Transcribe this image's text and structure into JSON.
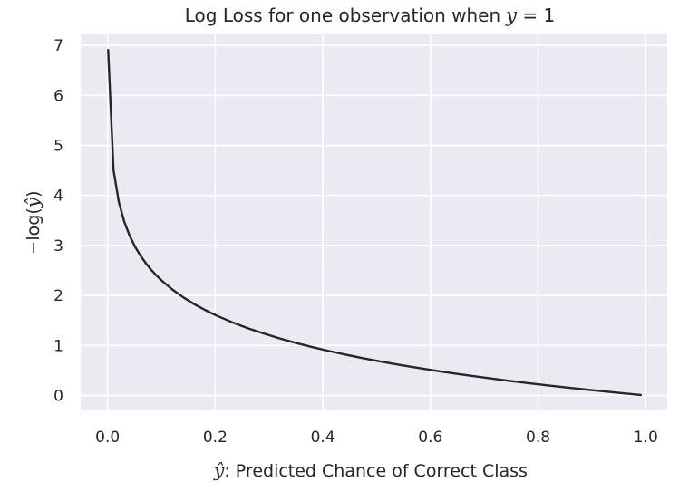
{
  "chart_data": {
    "type": "line",
    "title": {
      "text": "Log Loss for one observation when",
      "math_var": "y",
      "math_eq": " = 1"
    },
    "xlabel": {
      "math_var": "ŷ",
      "text": ": Predicted Chance of Correct Class"
    },
    "ylabel": {
      "text": "−log(",
      "math_var": "ŷ",
      "close": ")"
    },
    "xlim": [
      -0.05,
      1.04
    ],
    "ylim": [
      -0.3,
      7.22
    ],
    "grid": true,
    "xticks": [
      {
        "value": 0.0,
        "label": "0.0"
      },
      {
        "value": 0.2,
        "label": "0.2"
      },
      {
        "value": 0.4,
        "label": "0.4"
      },
      {
        "value": 0.6,
        "label": "0.6"
      },
      {
        "value": 0.8,
        "label": "0.8"
      },
      {
        "value": 1.0,
        "label": "1.0"
      }
    ],
    "yticks": [
      {
        "value": 0,
        "label": "0"
      },
      {
        "value": 1,
        "label": "1"
      },
      {
        "value": 2,
        "label": "2"
      },
      {
        "value": 3,
        "label": "3"
      },
      {
        "value": 4,
        "label": "4"
      },
      {
        "value": 5,
        "label": "5"
      },
      {
        "value": 6,
        "label": "6"
      },
      {
        "value": 7,
        "label": "7"
      }
    ],
    "series": [
      {
        "function": "-log(x)",
        "x": [
          0.001,
          0.011,
          0.021,
          0.031,
          0.041,
          0.051,
          0.061,
          0.071,
          0.081,
          0.091,
          0.101,
          0.121,
          0.141,
          0.161,
          0.181,
          0.201,
          0.231,
          0.261,
          0.291,
          0.321,
          0.351,
          0.381,
          0.411,
          0.441,
          0.471,
          0.501,
          0.541,
          0.581,
          0.621,
          0.661,
          0.701,
          0.741,
          0.781,
          0.821,
          0.861,
          0.901,
          0.941,
          0.971,
          0.991
        ],
        "y": [
          6.908,
          4.51,
          3.863,
          3.474,
          3.194,
          2.976,
          2.797,
          2.645,
          2.513,
          2.397,
          2.293,
          2.112,
          1.959,
          1.826,
          1.709,
          1.604,
          1.465,
          1.343,
          1.235,
          1.136,
          1.047,
          0.965,
          0.889,
          0.819,
          0.753,
          0.691,
          0.614,
          0.543,
          0.476,
          0.414,
          0.355,
          0.3,
          0.247,
          0.197,
          0.15,
          0.104,
          0.061,
          0.029,
          0.009
        ]
      }
    ],
    "colors": {
      "background": "#eaeaf2",
      "grid": "#ffffff",
      "line": "#262626",
      "text": "#262626"
    }
  }
}
